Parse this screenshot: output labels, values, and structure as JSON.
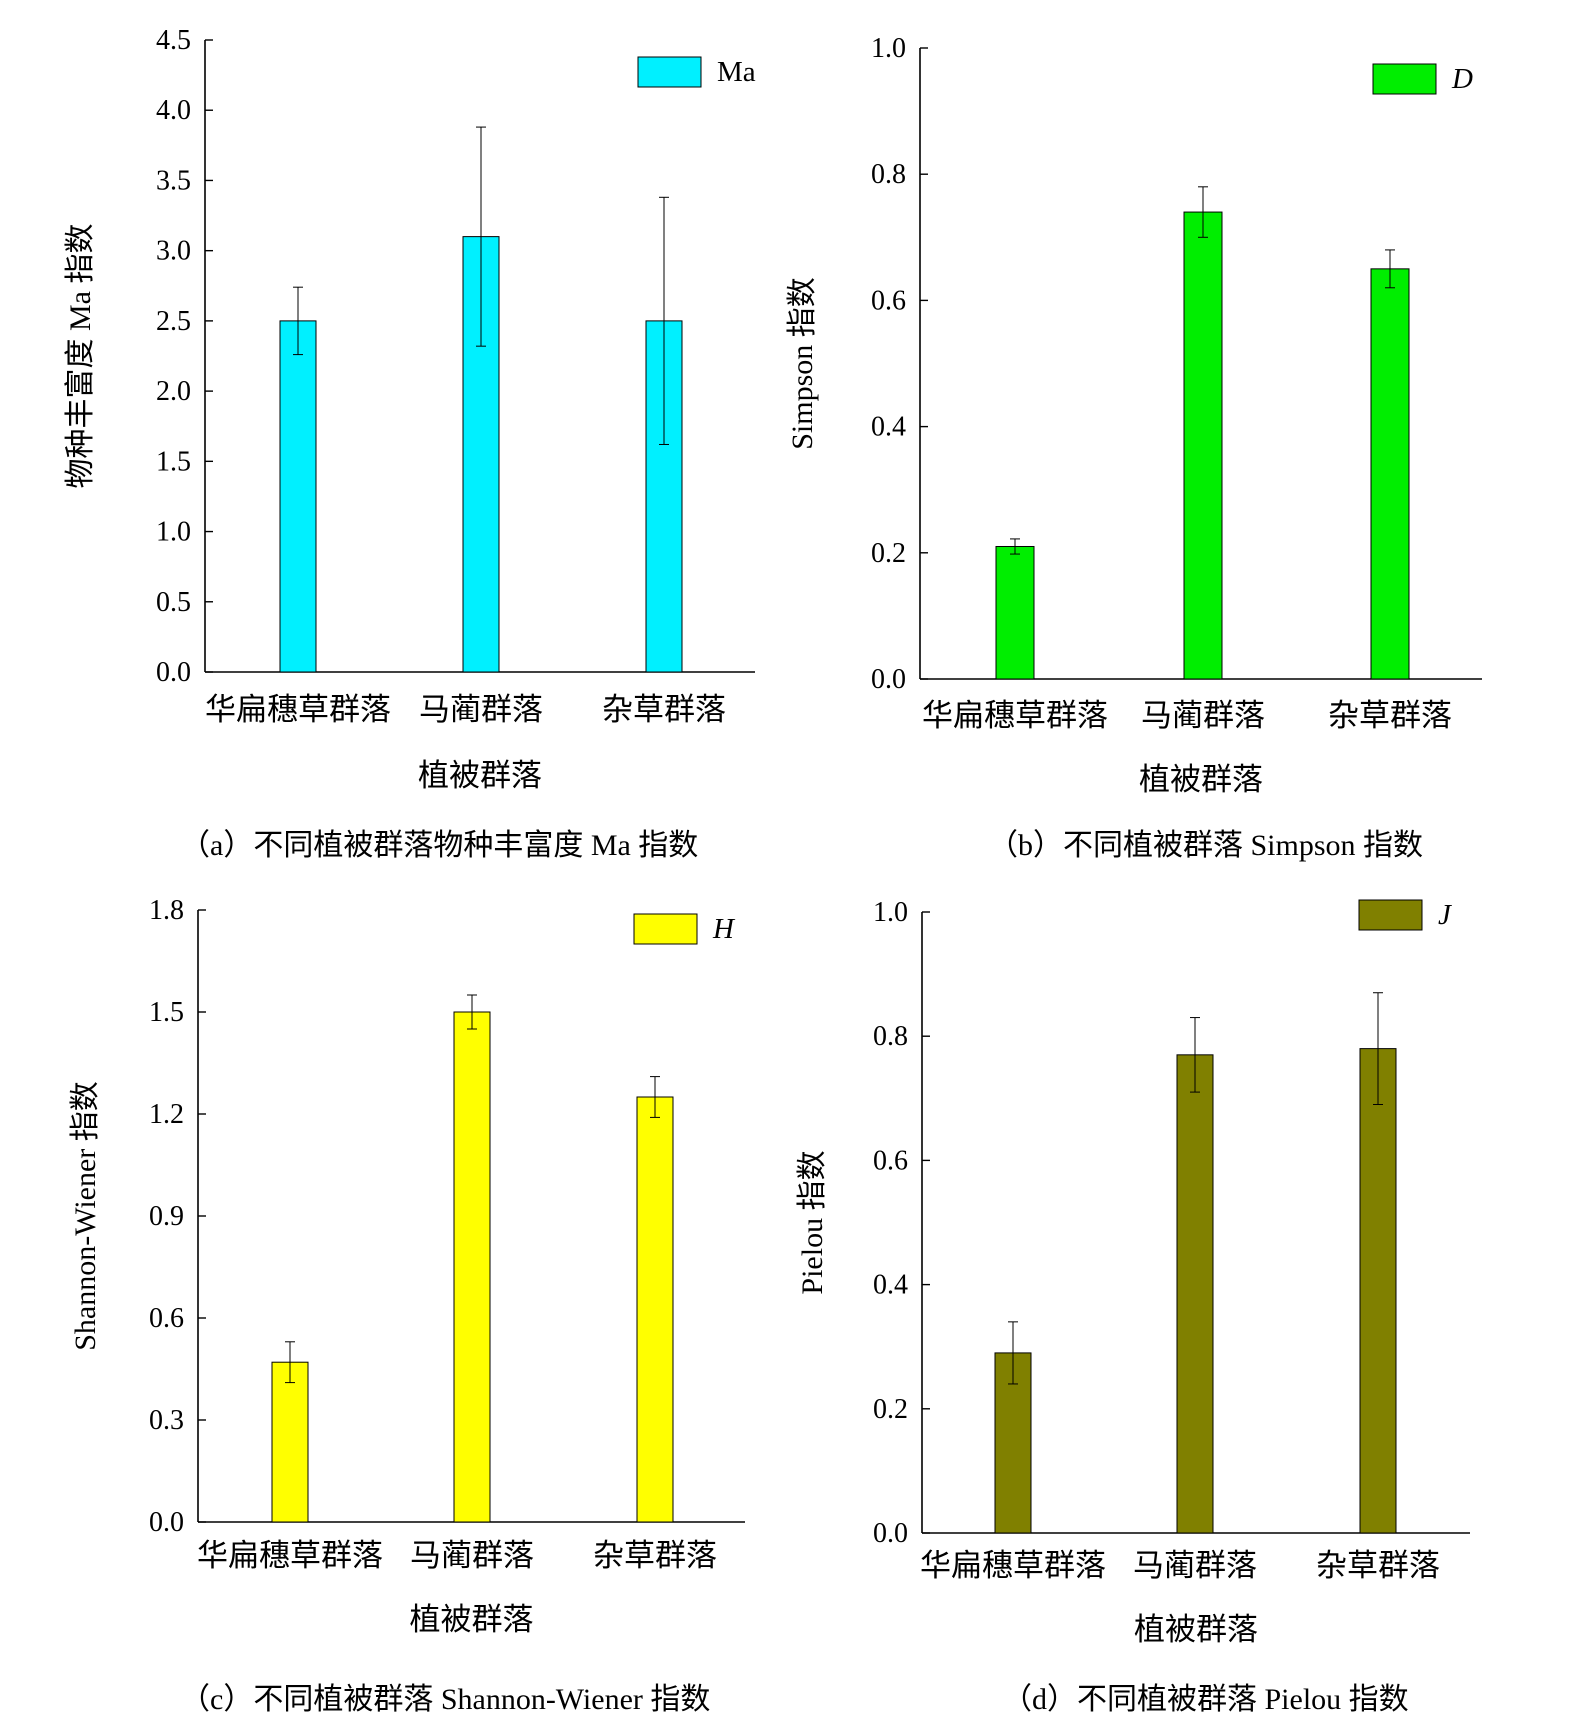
{
  "chart_data": [
    {
      "type": "bar",
      "categories": [
        "华扁穗草群落",
        "马蔺群落",
        "杂草群落"
      ],
      "values": [
        2.5,
        3.1,
        2.5
      ],
      "errors": [
        0.24,
        0.78,
        0.88
      ],
      "series_name": "Ma",
      "xlabel": "植被群落",
      "ylabel": "物种丰富度 Ma 指数",
      "ylim": [
        0,
        4.5
      ],
      "yticks": [
        "0.0",
        "0.5",
        "1.0",
        "1.5",
        "2.0",
        "2.5",
        "3.0",
        "3.5",
        "4.0",
        "4.5"
      ],
      "color": "#00f0ff",
      "caption": "（a）不同植被群落物种丰富度 Ma 指数",
      "legend_italic": false,
      "legend_position": "top-right"
    },
    {
      "type": "bar",
      "categories": [
        "华扁穗草群落",
        "马蔺群落",
        "杂草群落"
      ],
      "values": [
        0.21,
        0.74,
        0.65
      ],
      "errors": [
        0.012,
        0.04,
        0.03
      ],
      "series_name": "D",
      "xlabel": "植被群落",
      "ylabel": "Simpson 指数",
      "ylim": [
        0,
        1.0
      ],
      "yticks": [
        "0.0",
        "0.2",
        "0.4",
        "0.6",
        "0.8",
        "1.0"
      ],
      "color": "#00ee00",
      "caption": "（b）不同植被群落 Simpson 指数",
      "legend_italic": true,
      "legend_position": "top-right"
    },
    {
      "type": "bar",
      "categories": [
        "华扁穗草群落",
        "马蔺群落",
        "杂草群落"
      ],
      "values": [
        0.47,
        1.5,
        1.25
      ],
      "errors": [
        0.06,
        0.05,
        0.06
      ],
      "series_name": "H",
      "xlabel": "植被群落",
      "ylabel": "Shannon-Wiener 指数",
      "ylim": [
        0,
        1.8
      ],
      "yticks": [
        "0.0",
        "0.3",
        "0.6",
        "0.9",
        "1.2",
        "1.5",
        "1.8"
      ],
      "color": "#ffff00",
      "caption": "（c）不同植被群落 Shannon-Wiener 指数",
      "legend_italic": true,
      "legend_position": "top-right"
    },
    {
      "type": "bar",
      "categories": [
        "华扁穗草群落",
        "马蔺群落",
        "杂草群落"
      ],
      "values": [
        0.29,
        0.77,
        0.78
      ],
      "errors": [
        0.05,
        0.06,
        0.09
      ],
      "series_name": "J",
      "xlabel": "植被群落",
      "ylabel": "Pielou 指数",
      "ylim": [
        0,
        1.0
      ],
      "yticks": [
        "0.0",
        "0.2",
        "0.4",
        "0.6",
        "0.8",
        "1.0"
      ],
      "color": "#808000",
      "caption": "（d）不同植被群落 Pielou 指数",
      "legend_italic": true,
      "legend_position": "top-right"
    }
  ]
}
